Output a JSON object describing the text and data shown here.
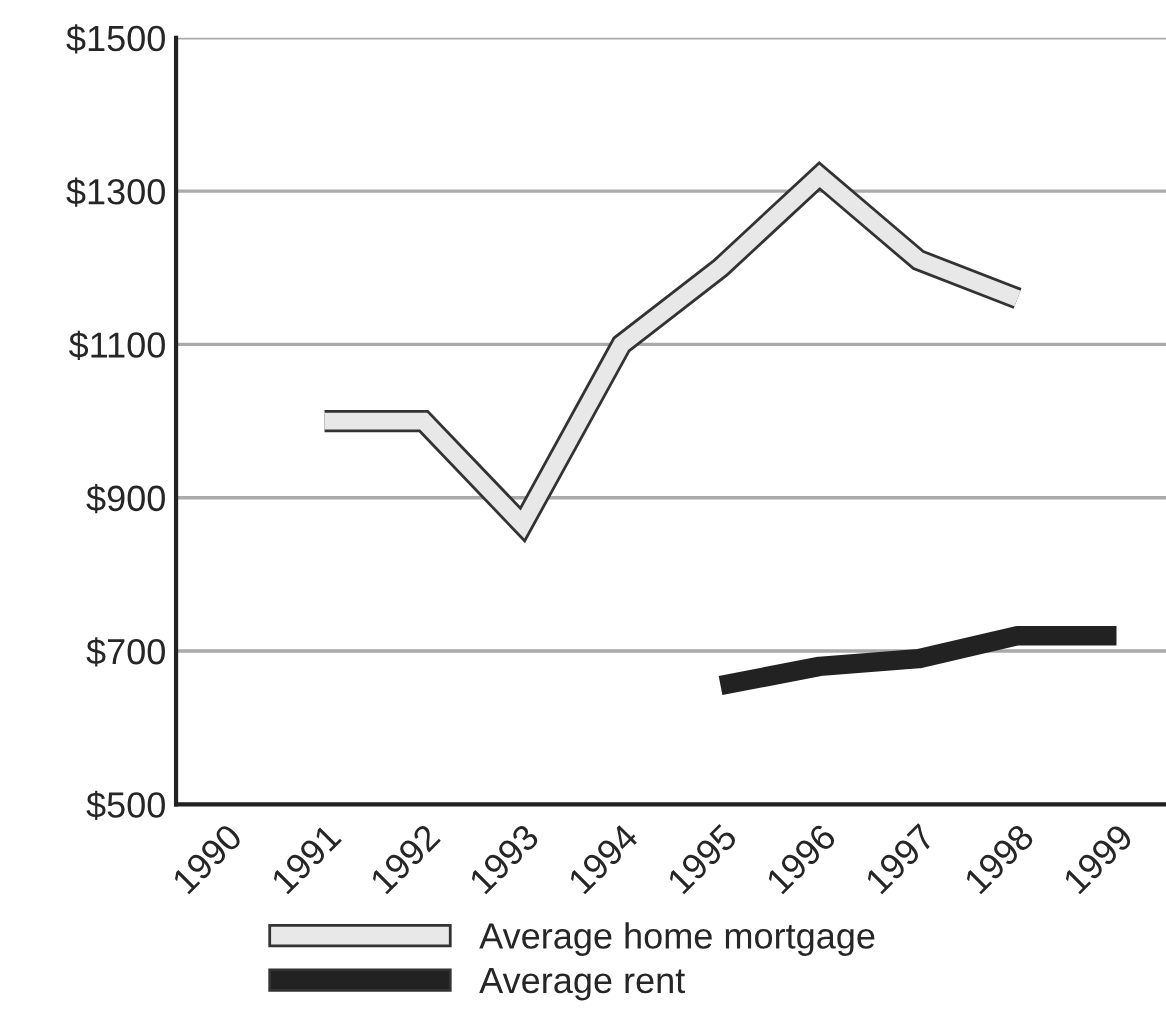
{
  "chart_data": {
    "type": "line",
    "categories": [
      "1990",
      "1991",
      "1992",
      "1993",
      "1994",
      "1995",
      "1996",
      "1997",
      "1998",
      "1999"
    ],
    "series": [
      {
        "name": "Average home mortgage",
        "color": "#e8e8e8",
        "values": [
          null,
          1000,
          1000,
          865,
          1100,
          1200,
          1320,
          1210,
          1160,
          null
        ]
      },
      {
        "name": "Average rent",
        "color": "#222222",
        "values": [
          null,
          null,
          null,
          null,
          null,
          655,
          680,
          690,
          720,
          720
        ]
      }
    ],
    "ylim": [
      500,
      1500
    ],
    "yticks": [
      {
        "value": 500,
        "label": "$500"
      },
      {
        "value": 700,
        "label": "$700"
      },
      {
        "value": 900,
        "label": "$900"
      },
      {
        "value": 1100,
        "label": "$1100"
      },
      {
        "value": 1300,
        "label": "$1300"
      },
      {
        "value": 1500,
        "label": "$1500"
      }
    ],
    "grid": "y",
    "legend": "bottom",
    "marker": "none",
    "line_style": "solid"
  }
}
